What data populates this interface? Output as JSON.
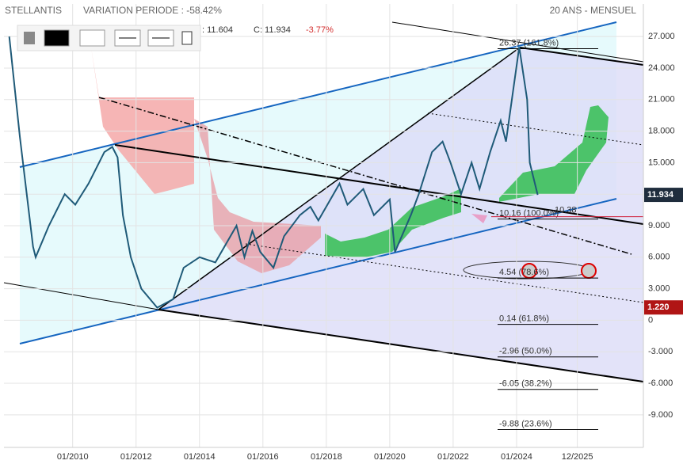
{
  "header": {
    "name": "STELLANTIS",
    "variation": "VARIATION PERIODE : -58.42%",
    "period": "20 ANS - MENSUEL",
    "low": ": 11.604",
    "close": "C: 11.934",
    "change": "-3.77%"
  },
  "chart_data": {
    "type": "line",
    "x": [
      "2008-01",
      "2008-05",
      "2008-10",
      "2008-11",
      "2009-04",
      "2009-10",
      "2010-02",
      "2010-07",
      "2011-01",
      "2011-04",
      "2011-06",
      "2011-08",
      "2011-11",
      "2012-03",
      "2012-09",
      "2013-03",
      "2013-07",
      "2014-01",
      "2014-07",
      "2015-03",
      "2015-06",
      "2015-09",
      "2015-12",
      "2016-05",
      "2016-09",
      "2017-03",
      "2017-07",
      "2017-10",
      "2018-06",
      "2018-09",
      "2019-03",
      "2019-07",
      "2020-01",
      "2020-03",
      "2020-09",
      "2020-12",
      "2021-05",
      "2021-09",
      "2021-12",
      "2022-04",
      "2022-08",
      "2022-11",
      "2023-03",
      "2023-07",
      "2023-09",
      "2024-02",
      "2024-05",
      "2024-06",
      "2024-09"
    ],
    "series": [
      {
        "name": "STELLANTIS",
        "color": "#1f5a78",
        "values": [
          27,
          17.5,
          7,
          6,
          9,
          12,
          11,
          13,
          16,
          16.5,
          15.5,
          10,
          6,
          3,
          1.2,
          2,
          5,
          6,
          5.5,
          9,
          6,
          8.5,
          6.5,
          5,
          8,
          10,
          10.8,
          9.5,
          13,
          11,
          12.5,
          10,
          11.5,
          6.5,
          10,
          12,
          16,
          17,
          15,
          12,
          15,
          12.5,
          16,
          19,
          17,
          26,
          21,
          15,
          11.934
        ]
      }
    ],
    "xlim": [
      "2007-11",
      "2028-01"
    ],
    "xticks": [
      {
        "value": "2010-01",
        "label": "01/2010"
      },
      {
        "value": "2012-01",
        "label": "01/2012"
      },
      {
        "value": "2014-01",
        "label": "01/2014"
      },
      {
        "value": "2016-01",
        "label": "01/2016"
      },
      {
        "value": "2018-01",
        "label": "01/2018"
      },
      {
        "value": "2020-01",
        "label": "01/2020"
      },
      {
        "value": "2022-01",
        "label": "01/2022"
      },
      {
        "value": "2024-01",
        "label": "01/2024"
      },
      {
        "value": "2025-12",
        "label": "12/2025"
      }
    ],
    "ylim": [
      -12.1,
      30.1
    ],
    "yticks": [
      {
        "value": 27,
        "label": "27.000"
      },
      {
        "value": 24,
        "label": "24.000"
      },
      {
        "value": 21,
        "label": "21.000"
      },
      {
        "value": 18,
        "label": "18.000"
      },
      {
        "value": 15,
        "label": "15.000"
      },
      {
        "value": 12,
        "label": "12.000"
      },
      {
        "value": 9,
        "label": "9.000"
      },
      {
        "value": 6,
        "label": "6.000"
      },
      {
        "value": 3,
        "label": "3.000"
      },
      0,
      {
        "value": -3,
        "label": "-3.000"
      },
      {
        "value": -6,
        "label": "-6.000"
      },
      {
        "value": -9,
        "label": "-9.000"
      }
    ],
    "grid": true,
    "fib_levels": [
      {
        "value": 26.37,
        "label": "26.37 (161.8%)"
      },
      {
        "value": 10.16,
        "label": "10.16 (100.0%)"
      },
      {
        "value": 4.54,
        "label": "4.54 (78.6%)"
      },
      {
        "value": 0.14,
        "label": "0.14 (61.8%)"
      },
      {
        "value": -2.96,
        "label": "-2.96 (50.0%)"
      },
      {
        "value": -6.05,
        "label": "-6.05 (38.2%)"
      },
      {
        "value": -9.88,
        "label": "-9.88 (23.6%)"
      }
    ],
    "price_tags": [
      {
        "value": 11.934,
        "label": "11.934",
        "color": "#1f2d3d"
      },
      {
        "value": 1.22,
        "label": "1.220",
        "color": "#b01515"
      }
    ],
    "alert_line": {
      "value": 10.38,
      "label": "10.38",
      "color": "#d0203a"
    }
  }
}
